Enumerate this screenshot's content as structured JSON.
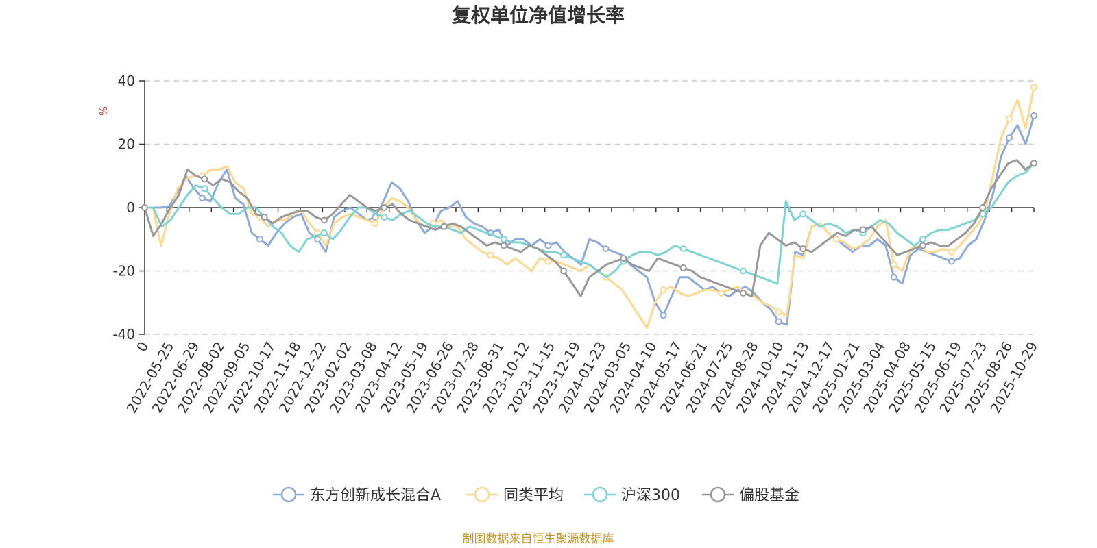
{
  "chart_data": {
    "type": "line",
    "title": "复权单位净值增长率",
    "ylabel": "%",
    "xlabel": "",
    "ylim": [
      -40,
      40
    ],
    "yticks": [
      -40,
      -20,
      0,
      20,
      40
    ],
    "grid": "horizontal-dashed",
    "legend_position": "bottom",
    "x_tick_labels": [
      "0",
      "2022-05-25",
      "2022-06-29",
      "2022-08-02",
      "2022-09-05",
      "2022-10-17",
      "2022-11-18",
      "2022-12-22",
      "2023-02-02",
      "2023-03-08",
      "2023-04-12",
      "2023-05-19",
      "2023-06-26",
      "2023-07-28",
      "2023-08-31",
      "2023-10-12",
      "2023-11-15",
      "2023-12-19",
      "2024-01-23",
      "2024-03-05",
      "2024-04-10",
      "2024-05-17",
      "2024-06-21",
      "2024-07-25",
      "2024-08-28",
      "2024-10-10",
      "2024-11-13",
      "2024-12-17",
      "2025-01-21",
      "2025-03-04",
      "2025-04-08",
      "2025-05-15",
      "2025-06-19",
      "2025-07-23",
      "2025-08-26",
      "2025-10-29"
    ],
    "series": [
      {
        "name": "东方创新成长混合A",
        "color": "#8eaadb",
        "values": [
          0,
          0,
          0,
          0.5,
          5,
          10,
          6,
          3,
          2,
          8,
          12,
          3,
          1,
          -8,
          -10,
          -12,
          -8,
          -5,
          -3,
          -2,
          -8,
          -10,
          -14,
          -3,
          -1,
          0,
          -2,
          -4,
          -3,
          2,
          8,
          6,
          2,
          -4,
          -8,
          -6,
          -1,
          0,
          2,
          -3,
          -5,
          -6,
          -8,
          -7,
          -12,
          -10,
          -10,
          -12,
          -10,
          -12,
          -11,
          -14,
          -16,
          -18,
          -10,
          -11,
          -13,
          -14,
          -15,
          -18,
          -20,
          -22,
          -30,
          -34,
          -28,
          -22,
          -22,
          -24,
          -26,
          -25,
          -27,
          -28,
          -26,
          -25,
          -27,
          -30,
          -32,
          -36,
          -37,
          -14,
          -15,
          -6,
          -5,
          -8,
          -10,
          -12,
          -14,
          -12,
          -12,
          -10,
          -12,
          -22,
          -24,
          -15,
          -13,
          -14,
          -15,
          -16,
          -17,
          -16,
          -12,
          -10,
          -4,
          4,
          16,
          22,
          26,
          20,
          29
        ]
      },
      {
        "name": "同类平均",
        "color": "#ffd88e",
        "values": [
          0,
          0,
          -12,
          -2,
          6,
          9,
          10,
          10,
          12,
          12,
          13,
          8,
          6,
          -2,
          -3,
          -6,
          -4,
          -4,
          -2,
          -1,
          -5,
          -8,
          -12,
          -5,
          -3,
          -2,
          -3,
          -4,
          -5,
          0,
          3,
          2,
          0,
          -4,
          -6,
          -5,
          -4,
          -6,
          -6,
          -10,
          -12,
          -14,
          -15,
          -16,
          -18,
          -16,
          -18,
          -20,
          -16,
          -17,
          -17,
          -18,
          -19,
          -20,
          -18,
          -20,
          -22,
          -24,
          -26,
          -30,
          -34,
          -38,
          -30,
          -26,
          -25,
          -27,
          -28,
          -27,
          -26,
          -26,
          -27,
          -26,
          -25,
          -27,
          -28,
          -30,
          -31,
          -33,
          -34,
          -15,
          -16,
          -6,
          -5,
          -8,
          -10,
          -11,
          -13,
          -12,
          -10,
          -6,
          -4,
          -18,
          -20,
          -13,
          -12,
          -14,
          -14,
          -13,
          -14,
          -12,
          -9,
          -6,
          -2,
          10,
          22,
          28,
          34,
          25,
          38
        ]
      },
      {
        "name": "沪深300",
        "color": "#7ed3d3",
        "values": [
          0,
          0,
          -6,
          -4,
          0,
          4,
          7,
          6,
          3,
          0,
          -2,
          -2,
          0,
          0,
          -3,
          -6,
          -8,
          -12,
          -14,
          -10,
          -9,
          -8,
          -10,
          -7,
          -3,
          0,
          0,
          -2,
          -3,
          -4,
          -2,
          -1,
          -3,
          -5,
          -6,
          -6,
          -7,
          -8,
          -6,
          -7,
          -8,
          -9,
          -10,
          -11,
          -11,
          -12,
          -13,
          -14,
          -14,
          -15,
          -16,
          -17,
          -18,
          -20,
          -22,
          -20,
          -17,
          -15,
          -14,
          -14,
          -15,
          -14,
          -12,
          -13,
          -14,
          -15,
          -16,
          -17,
          -18,
          -19,
          -20,
          -21,
          -22,
          -23,
          -24,
          2,
          -4,
          -2,
          -4,
          -6,
          -5,
          -6,
          -8,
          -7,
          -8,
          -6,
          -4,
          -5,
          -8,
          -10,
          -12,
          -10,
          -8,
          -7,
          -7,
          -6,
          -5,
          -4,
          -2,
          0,
          4,
          8,
          10,
          11,
          14
        ]
      },
      {
        "name": "偏股基金",
        "color": "#999999",
        "values": [
          0,
          -9,
          -5,
          0,
          4,
          12,
          10,
          9,
          7,
          9,
          8,
          5,
          3,
          -2,
          -3,
          -5,
          -3,
          -2,
          -1,
          -1,
          -3,
          -4,
          -2,
          1,
          4,
          2,
          0,
          -1,
          0,
          1,
          -2,
          -4,
          -5,
          -6,
          -7,
          -6,
          -5,
          -6,
          -8,
          -10,
          -12,
          -11,
          -12,
          -13,
          -14,
          -12,
          -13,
          -15,
          -17,
          -20,
          -24,
          -28,
          -22,
          -20,
          -18,
          -17,
          -16,
          -18,
          -19,
          -20,
          -16,
          -17,
          -18,
          -19,
          -20,
          -22,
          -23,
          -24,
          -25,
          -26,
          -27,
          -28,
          -12,
          -8,
          -10,
          -12,
          -11,
          -13,
          -14,
          -12,
          -10,
          -8,
          -9,
          -7,
          -7,
          -6,
          -9,
          -12,
          -15,
          -14,
          -13,
          -12,
          -11,
          -12,
          -12,
          -10,
          -8,
          -5,
          0,
          6,
          10,
          14,
          15,
          12,
          14
        ]
      }
    ]
  },
  "source_text": "制图数据来自恒生聚源数据库"
}
